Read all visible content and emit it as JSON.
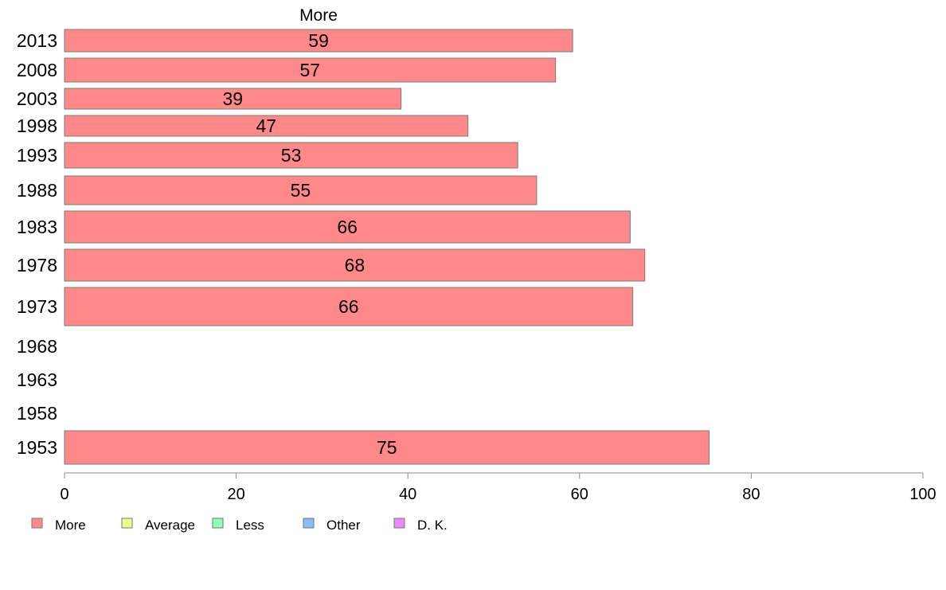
{
  "chart_data": {
    "type": "bar",
    "orientation": "horizontal",
    "title": "More",
    "categories": [
      "2013",
      "2008",
      "2003",
      "1998",
      "1993",
      "1988",
      "1983",
      "1978",
      "1973",
      "1968",
      "1963",
      "1958",
      "1953"
    ],
    "series": [
      {
        "name": "More",
        "color": "#ff8888",
        "values": [
          59.2,
          57.2,
          39.2,
          47,
          52.8,
          55,
          65.9,
          67.6,
          66.2,
          null,
          null,
          null,
          75.1
        ],
        "labels": [
          "59",
          "57",
          "39",
          "47",
          "53",
          "55",
          "66",
          "68",
          "66",
          "",
          "",
          "",
          "75"
        ]
      }
    ],
    "xlim": [
      0,
      100
    ],
    "xticks": [
      0,
      20,
      40,
      60,
      80,
      100
    ],
    "xlabel": "",
    "ylabel": "",
    "grid": false,
    "legend": {
      "placement": "bottom-left",
      "entries": [
        {
          "label": "More",
          "color": "#ff8888"
        },
        {
          "label": "Average",
          "color": "#eeff88"
        },
        {
          "label": "Less",
          "color": "#88ffbb"
        },
        {
          "label": "Other",
          "color": "#88bbff"
        },
        {
          "label": "D. K.",
          "color": "#ee88ff"
        }
      ]
    }
  }
}
